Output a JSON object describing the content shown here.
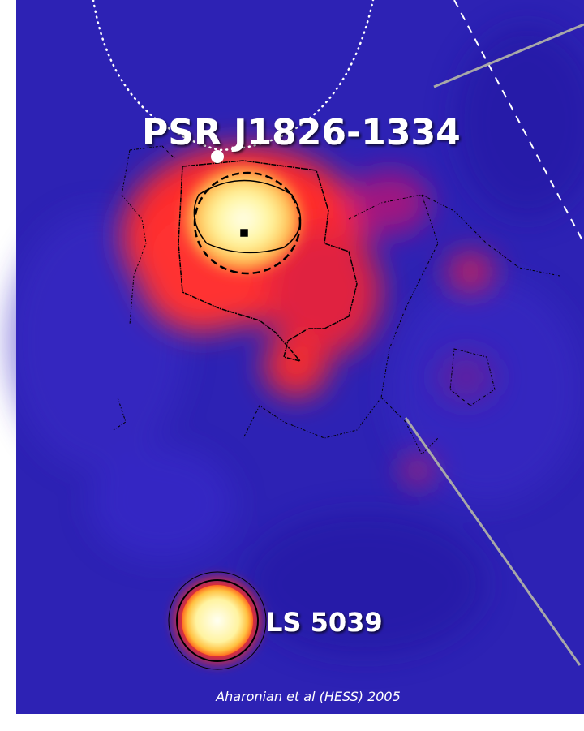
{
  "labels": {
    "pulsar": "PSR J1826-1334",
    "source": "LS 5039"
  },
  "caption": "Aharonian et al (HESS) 2005"
}
